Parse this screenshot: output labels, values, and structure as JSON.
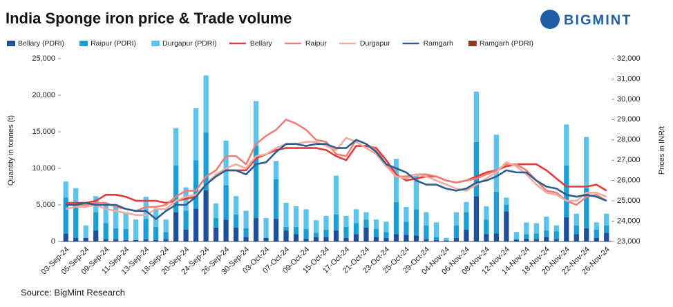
{
  "chart_data": {
    "type": "bar",
    "title": "India Sponge iron price & Trade volume",
    "brand": "BIGMINT",
    "source": "Source: BigMint Research",
    "y_label": "Quantity in tonnes (t)",
    "y2_label": "Prices in INR/t",
    "categories": [
      "03-Sep-24",
      null,
      "05-Sep-24",
      null,
      "09-Sep-24",
      null,
      "11-Sep-24",
      null,
      "13-Sep-24",
      null,
      "18-Sep-24",
      null,
      "20-Sep-24",
      null,
      "24-Sep-24",
      null,
      "26-Sep-24",
      null,
      "30-Sep-24",
      null,
      "03-Oct-24",
      null,
      "07-Oct-24",
      null,
      "09-Oct-24",
      null,
      "15-Oct-24",
      null,
      "17-Oct-24",
      null,
      "21-Oct-24",
      null,
      "23-Oct-24",
      null,
      "25-Oct-24",
      null,
      "29-Oct-24",
      null,
      "04-Nov-24",
      null,
      "06-Nov-24",
      null,
      "08-Nov-24",
      null,
      "12-Nov-24",
      null,
      "14-Nov-24",
      null,
      "18-Nov-24",
      null,
      "20-Nov-24",
      null,
      "22-Nov-24",
      null,
      "26-Nov-24"
    ],
    "ylim": [
      0,
      25000
    ],
    "yticks": [
      0,
      {
        "value": 5000,
        "label": "5,000"
      },
      {
        "value": 10000,
        "label": "10,000"
      },
      {
        "value": 15000,
        "label": "15,000"
      },
      {
        "value": 20000,
        "label": "20,000"
      },
      {
        "value": 25000,
        "label": "25,000"
      }
    ],
    "y2lim": [
      23000,
      32000
    ],
    "y2ticks": [
      {
        "value": 23000,
        "label": "23,000"
      },
      {
        "value": 24000,
        "label": "24,000"
      },
      {
        "value": 25000,
        "label": "25,000"
      },
      {
        "value": 26000,
        "label": "26,000"
      },
      {
        "value": 27000,
        "label": "27,000"
      },
      {
        "value": 28000,
        "label": "28,000"
      },
      {
        "value": 29000,
        "label": "29,000"
      },
      {
        "value": 30000,
        "label": "30,000"
      },
      {
        "value": 31000,
        "label": "31,000"
      },
      {
        "value": 32000,
        "label": "32,000"
      }
    ],
    "grid": false,
    "series": [
      {
        "name": "Bellary (PDRI)",
        "type": "bar",
        "color": "#1f4e9a",
        "values": [
          1100,
          500,
          500,
          1500,
          300,
          300,
          200,
          200,
          300,
          200,
          300,
          4000,
          1600,
          4500,
          7000,
          1900,
          3000,
          1900,
          600,
          3200,
          500,
          3100,
          1500,
          1000,
          400,
          600,
          600,
          1500,
          500,
          1000,
          1900,
          600,
          500,
          1000,
          900,
          800,
          300,
          200,
          100,
          500,
          1600,
          6200,
          1000,
          1100,
          4100,
          200,
          400,
          300,
          600,
          300,
          3300,
          1000,
          1800,
          500,
          1200
        ]
      },
      {
        "name": "Raipur (PDRI)",
        "type": "bar",
        "color": "#1a9ed6",
        "values": [
          4900,
          4300,
          0,
          2500,
          2200,
          1500,
          1500,
          0,
          2800,
          1800,
          1000,
          6400,
          2600,
          6600,
          7900,
          1300,
          4700,
          1800,
          1200,
          9900,
          0,
          5400,
          500,
          1000,
          1300,
          600,
          1000,
          2200,
          1500,
          1500,
          1100,
          1100,
          800,
          4400,
          1800,
          3600,
          1900,
          400,
          100,
          1700,
          2400,
          7400,
          2000,
          5700,
          900,
          200,
          600,
          800,
          900,
          1100,
          7100,
          1200,
          5500,
          1100,
          1000
        ]
      },
      {
        "name": "Durgapur (PDRI)",
        "type": "bar",
        "color": "#5cc3ec",
        "values": [
          2200,
          2500,
          1700,
          2200,
          2800,
          3000,
          2300,
          2800,
          3000,
          2500,
          1700,
          5100,
          3200,
          7100,
          7800,
          2000,
          6100,
          2500,
          2400,
          6100,
          2700,
          2500,
          3300,
          2800,
          2700,
          1700,
          1900,
          5300,
          1500,
          1900,
          1000,
          1300,
          1400,
          5900,
          2000,
          4600,
          1800,
          2000,
          300,
          1800,
          1400,
          6900,
          1800,
          7800,
          1000,
          900,
          1600,
          1400,
          1900,
          800,
          5600,
          1600,
          7000,
          1000,
          1600
        ]
      },
      {
        "name": "Bellary",
        "type": "line",
        "axis": "y2",
        "color": "#e03a3a",
        "values": [
          24900,
          24900,
          24900,
          25000,
          25300,
          25300,
          25200,
          25000,
          25000,
          25000,
          24900,
          25000,
          25100,
          25200,
          25800,
          26300,
          26500,
          26500,
          26500,
          27100,
          27300,
          27500,
          27600,
          27600,
          27600,
          27600,
          27500,
          27200,
          27000,
          27700,
          27700,
          27600,
          27000,
          26300,
          26000,
          26100,
          26200,
          26200,
          26000,
          25900,
          26000,
          26200,
          26400,
          26500,
          26700,
          26800,
          26800,
          26800,
          26500,
          26100,
          25700,
          25700,
          25700,
          25800,
          25500
        ]
      },
      {
        "name": "Raipur",
        "type": "line",
        "axis": "y2",
        "color": "#ef7e76",
        "values": [
          24800,
          24800,
          24800,
          24900,
          24900,
          24700,
          24600,
          24500,
          24700,
          24700,
          24800,
          25200,
          25500,
          25500,
          26200,
          26500,
          27200,
          27200,
          26800,
          27800,
          28200,
          28500,
          29000,
          28800,
          28500,
          28000,
          27900,
          27300,
          27200,
          28000,
          27800,
          27500,
          26800,
          26200,
          26200,
          26300,
          26300,
          26200,
          26000,
          25900,
          26000,
          26100,
          26300,
          26500,
          26800,
          26800,
          26500,
          26000,
          25500,
          25400,
          25000,
          24800,
          25200,
          25300,
          25000
        ]
      },
      {
        "name": "Durgapur",
        "type": "line",
        "axis": "y2",
        "color": "#f4ab9f",
        "values": [
          24600,
          24700,
          24700,
          24800,
          24600,
          24500,
          24400,
          24300,
          24300,
          24600,
          24600,
          25000,
          25200,
          25300,
          25800,
          26300,
          26600,
          26800,
          26600,
          27200,
          27300,
          27600,
          27800,
          27800,
          27900,
          27900,
          27700,
          27500,
          28100,
          27900,
          27600,
          27300,
          26700,
          26200,
          26100,
          26300,
          26200,
          26000,
          25800,
          25600,
          25500,
          25800,
          26100,
          26400,
          26900,
          26700,
          26300,
          25800,
          25400,
          25300,
          25000,
          25000,
          25400,
          25400,
          25200
        ]
      },
      {
        "name": "Ramgarh",
        "type": "line",
        "axis": "y2",
        "color": "#2b5e8e",
        "values": [
          24800,
          24800,
          24900,
          24800,
          24800,
          24800,
          24600,
          24500,
          24500,
          24100,
          24500,
          24800,
          24800,
          25200,
          25800,
          26200,
          26500,
          26500,
          26300,
          26800,
          26900,
          27400,
          27800,
          27800,
          27700,
          27800,
          27800,
          27600,
          27600,
          28000,
          27800,
          27400,
          26800,
          26600,
          26400,
          26000,
          25800,
          25800,
          25600,
          25500,
          25600,
          25900,
          26000,
          26200,
          26500,
          26400,
          26400,
          26000,
          25700,
          25600,
          25300,
          25200,
          25300,
          25200,
          25000
        ]
      },
      {
        "name": "Ramgarh (PDRI)",
        "type": "bar",
        "color": "#8b3a1a",
        "values": [
          null,
          null,
          null,
          null,
          null,
          null,
          null,
          null,
          null,
          null,
          null,
          null,
          null,
          null,
          null,
          null,
          null,
          null,
          null,
          null,
          null,
          null,
          null,
          null,
          null,
          null,
          null,
          null,
          null,
          null,
          null,
          null,
          null,
          null,
          null,
          null,
          null,
          null,
          null,
          null,
          null,
          null,
          null,
          null,
          null,
          null,
          null,
          null,
          null,
          null,
          null,
          null,
          null,
          null,
          null
        ]
      }
    ]
  }
}
